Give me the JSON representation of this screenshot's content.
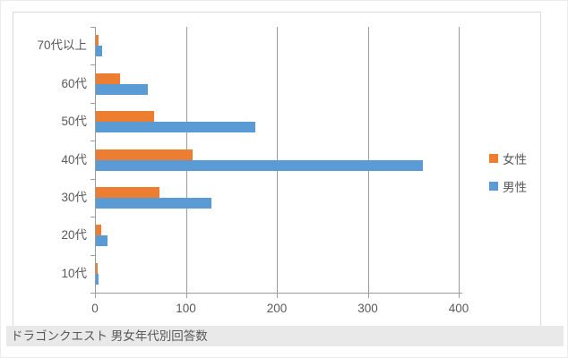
{
  "caption": "ドラゴンクエスト 男女年代別回答数",
  "chart_data": {
    "type": "bar",
    "orientation": "horizontal",
    "title": "ドラゴンクエスト 男女年代別回答数",
    "categories": [
      "70代以上",
      "60代",
      "50代",
      "40代",
      "30代",
      "20代",
      "10代"
    ],
    "series": [
      {
        "name": "女性",
        "color": "#ED7D31",
        "values": [
          3,
          27,
          64,
          106,
          70,
          6,
          2
        ]
      },
      {
        "name": "男性",
        "color": "#5B9BD5",
        "values": [
          7,
          57,
          175,
          360,
          127,
          13,
          3
        ]
      }
    ],
    "xlim": [
      0,
      400
    ],
    "xticks": [
      0,
      100,
      200,
      300,
      400
    ],
    "grid": true,
    "legend_position": "right",
    "colors": {
      "gridline": "#9b9b9b",
      "axis": "#9b9b9b",
      "label": "#595959",
      "frame_border": "#d9d9d9",
      "caption_bg": "#e9e9e9",
      "caption_text": "#595959"
    }
  }
}
